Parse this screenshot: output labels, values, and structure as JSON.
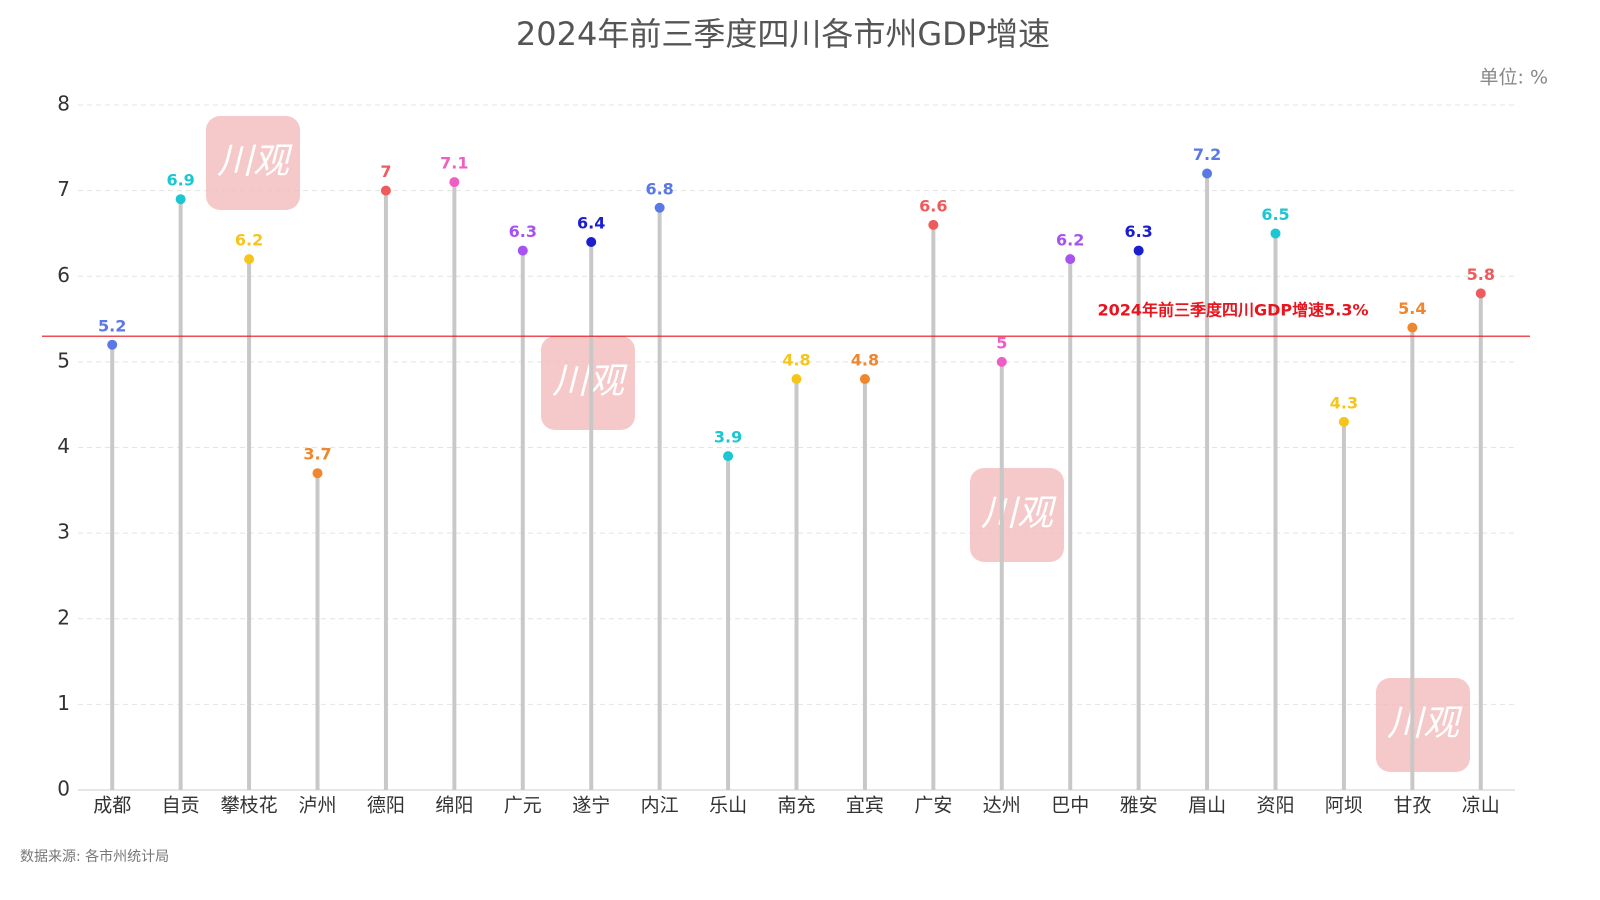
{
  "chart_data": {
    "type": "lollipop",
    "title": "2024年前三季度四川各市州GDP增速",
    "unit_label": "单位: %",
    "source": "数据来源: 各市州统计局",
    "watermark": "川观",
    "categories": [
      "成都",
      "自贡",
      "攀枝花",
      "泸州",
      "德阳",
      "绵阳",
      "广元",
      "遂宁",
      "内江",
      "乐山",
      "南充",
      "宜宾",
      "广安",
      "达州",
      "巴中",
      "雅安",
      "眉山",
      "资阳",
      "阿坝",
      "甘孜",
      "凉山"
    ],
    "values": [
      5.2,
      6.9,
      6.2,
      3.7,
      7,
      7.1,
      6.3,
      6.4,
      6.8,
      3.9,
      4.8,
      4.8,
      6.6,
      5,
      6.2,
      6.3,
      7.2,
      6.5,
      4.3,
      5.4,
      5.8
    ],
    "colors": [
      "#5a78e6",
      "#1cc6d2",
      "#f5c51c",
      "#f0862e",
      "#ef5a5a",
      "#ee5ec3",
      "#a653f2",
      "#1a1ecc",
      "#5a78e6",
      "#1cc6d2",
      "#f5c51c",
      "#f0862e",
      "#ef5a5a",
      "#ee5ec3",
      "#a653f2",
      "#1a1ecc",
      "#5a78e6",
      "#1cc6d2",
      "#f5c51c",
      "#f0862e",
      "#ef5a5a"
    ],
    "stem_color": "#c8c8c8",
    "ylim": [
      0,
      8
    ],
    "yticks": [
      0,
      1,
      2,
      3,
      4,
      5,
      6,
      7,
      8
    ],
    "grid": true,
    "reference_line": {
      "value": 5.3,
      "label": "2024年前三季度四川GDP增速5.3%",
      "color": "#e8141e"
    }
  }
}
